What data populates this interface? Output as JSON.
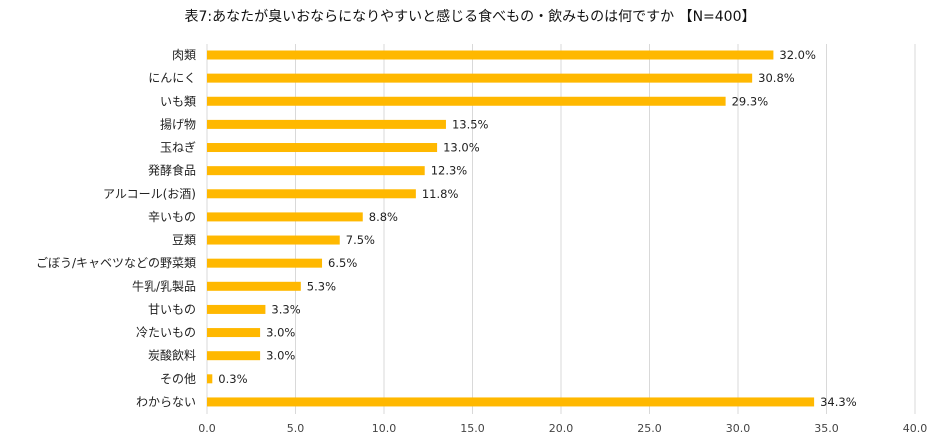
{
  "chart_data": {
    "type": "bar",
    "orientation": "horizontal",
    "title": "表7:あなたが臭いおならになりやすいと感じる食べもの・飲みものは何ですか 【N=400】",
    "categories": [
      "肉類",
      "にんにく",
      "いも類",
      "揚げ物",
      "玉ねぎ",
      "発酵食品",
      "アルコール(お酒)",
      "辛いもの",
      "豆類",
      "ごぼう/キャベツなどの野菜類",
      "牛乳/乳製品",
      "甘いもの",
      "冷たいもの",
      "炭酸飲料",
      "その他",
      "わからない"
    ],
    "values": [
      32.0,
      30.8,
      29.3,
      13.5,
      13.0,
      12.3,
      11.8,
      8.8,
      7.5,
      6.5,
      5.3,
      3.3,
      3.0,
      3.0,
      0.3,
      34.3
    ],
    "value_labels": [
      "32.0%",
      "30.8%",
      "29.3%",
      "13.5%",
      "13.0%",
      "12.3%",
      "11.8%",
      "8.8%",
      "7.5%",
      "6.5%",
      "5.3%",
      "3.3%",
      "3.0%",
      "3.0%",
      "0.3%",
      "34.3%"
    ],
    "xlim": [
      0,
      40
    ],
    "xticks": [
      "0.0",
      "5.0",
      "10.0",
      "15.0",
      "20.0",
      "25.0",
      "30.0",
      "35.0",
      "40.0"
    ],
    "grid": "vertical",
    "bar_color": "#FFB800",
    "grid_color": "#d9d9d9"
  }
}
